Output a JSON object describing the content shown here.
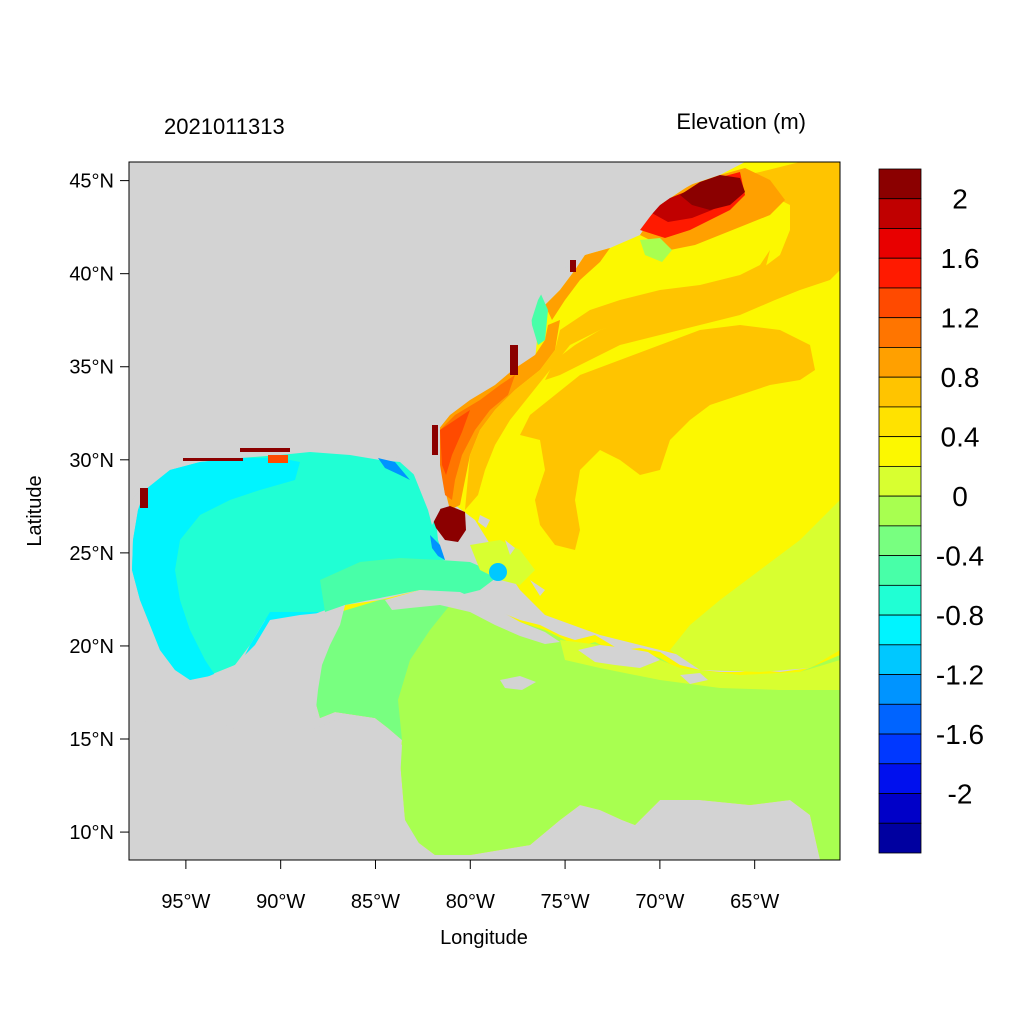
{
  "figure": {
    "left_title": "2021011313",
    "right_title": "Elevation (m)",
    "xlabel": "Longitude",
    "ylabel": "Latitude"
  },
  "map": {
    "lon_range": [
      -98,
      -60.5
    ],
    "lat_range": [
      8.5,
      46
    ],
    "lon_ticks": [
      {
        "value": -95,
        "label": "95°W"
      },
      {
        "value": -90,
        "label": "90°W"
      },
      {
        "value": -85,
        "label": "85°W"
      },
      {
        "value": -80,
        "label": "80°W"
      },
      {
        "value": -75,
        "label": "75°W"
      },
      {
        "value": -70,
        "label": "70°W"
      },
      {
        "value": -65,
        "label": "65°W"
      }
    ],
    "lat_ticks": [
      {
        "value": 45,
        "label": "45°N"
      },
      {
        "value": 40,
        "label": "40°N"
      },
      {
        "value": 35,
        "label": "35°N"
      },
      {
        "value": 30,
        "label": "30°N"
      },
      {
        "value": 25,
        "label": "25°N"
      },
      {
        "value": 20,
        "label": "20°N"
      },
      {
        "value": 15,
        "label": "15°N"
      },
      {
        "value": 10,
        "label": "10°N"
      }
    ],
    "land_color": "#d3d3d3"
  },
  "colorbar": {
    "colors_top_to_bottom": [
      "#8b0000",
      "#c00000",
      "#e80000",
      "#ff1a00",
      "#ff4a00",
      "#ff7500",
      "#ffa000",
      "#ffc400",
      "#ffe200",
      "#fcf800",
      "#d8ff30",
      "#a8ff50",
      "#78ff80",
      "#48ffa8",
      "#20ffd4",
      "#00f4ff",
      "#00c8ff",
      "#0094ff",
      "#0064ff",
      "#0038ff",
      "#0010ee",
      "#0000c8",
      "#0000a0"
    ],
    "tick_labels": [
      "2",
      "1.6",
      "1.2",
      "0.8",
      "0.4",
      "0",
      "-0.4",
      "-0.8",
      "-1.2",
      "-1.6",
      "-2"
    ]
  }
}
